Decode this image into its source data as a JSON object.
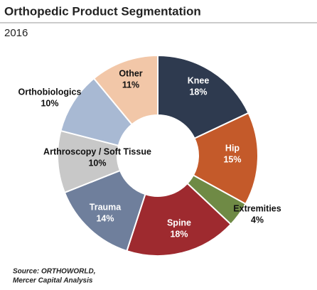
{
  "chart_data": {
    "type": "donut",
    "title": "Orthopedic Product Segmentation",
    "subtitle": "2016",
    "categories": [
      "Knee",
      "Hip",
      "Extremities",
      "Spine",
      "Trauma",
      "Arthroscopy / Soft Tissue",
      "Orthobiologics",
      "Other"
    ],
    "values": [
      18,
      15,
      4,
      18,
      14,
      10,
      10,
      11
    ],
    "value_labels": [
      "18%",
      "15%",
      "4%",
      "18%",
      "14%",
      "10%",
      "10%",
      "11%"
    ],
    "colors": [
      "#2e3a4f",
      "#c45a2a",
      "#6f8a45",
      "#9e2a2f",
      "#6f7f9c",
      "#c8c8c8",
      "#a8b9d3",
      "#f2c7a8"
    ],
    "source": [
      "Source: ORTHOWORLD,",
      "Mercer Capital  Analysis"
    ]
  }
}
